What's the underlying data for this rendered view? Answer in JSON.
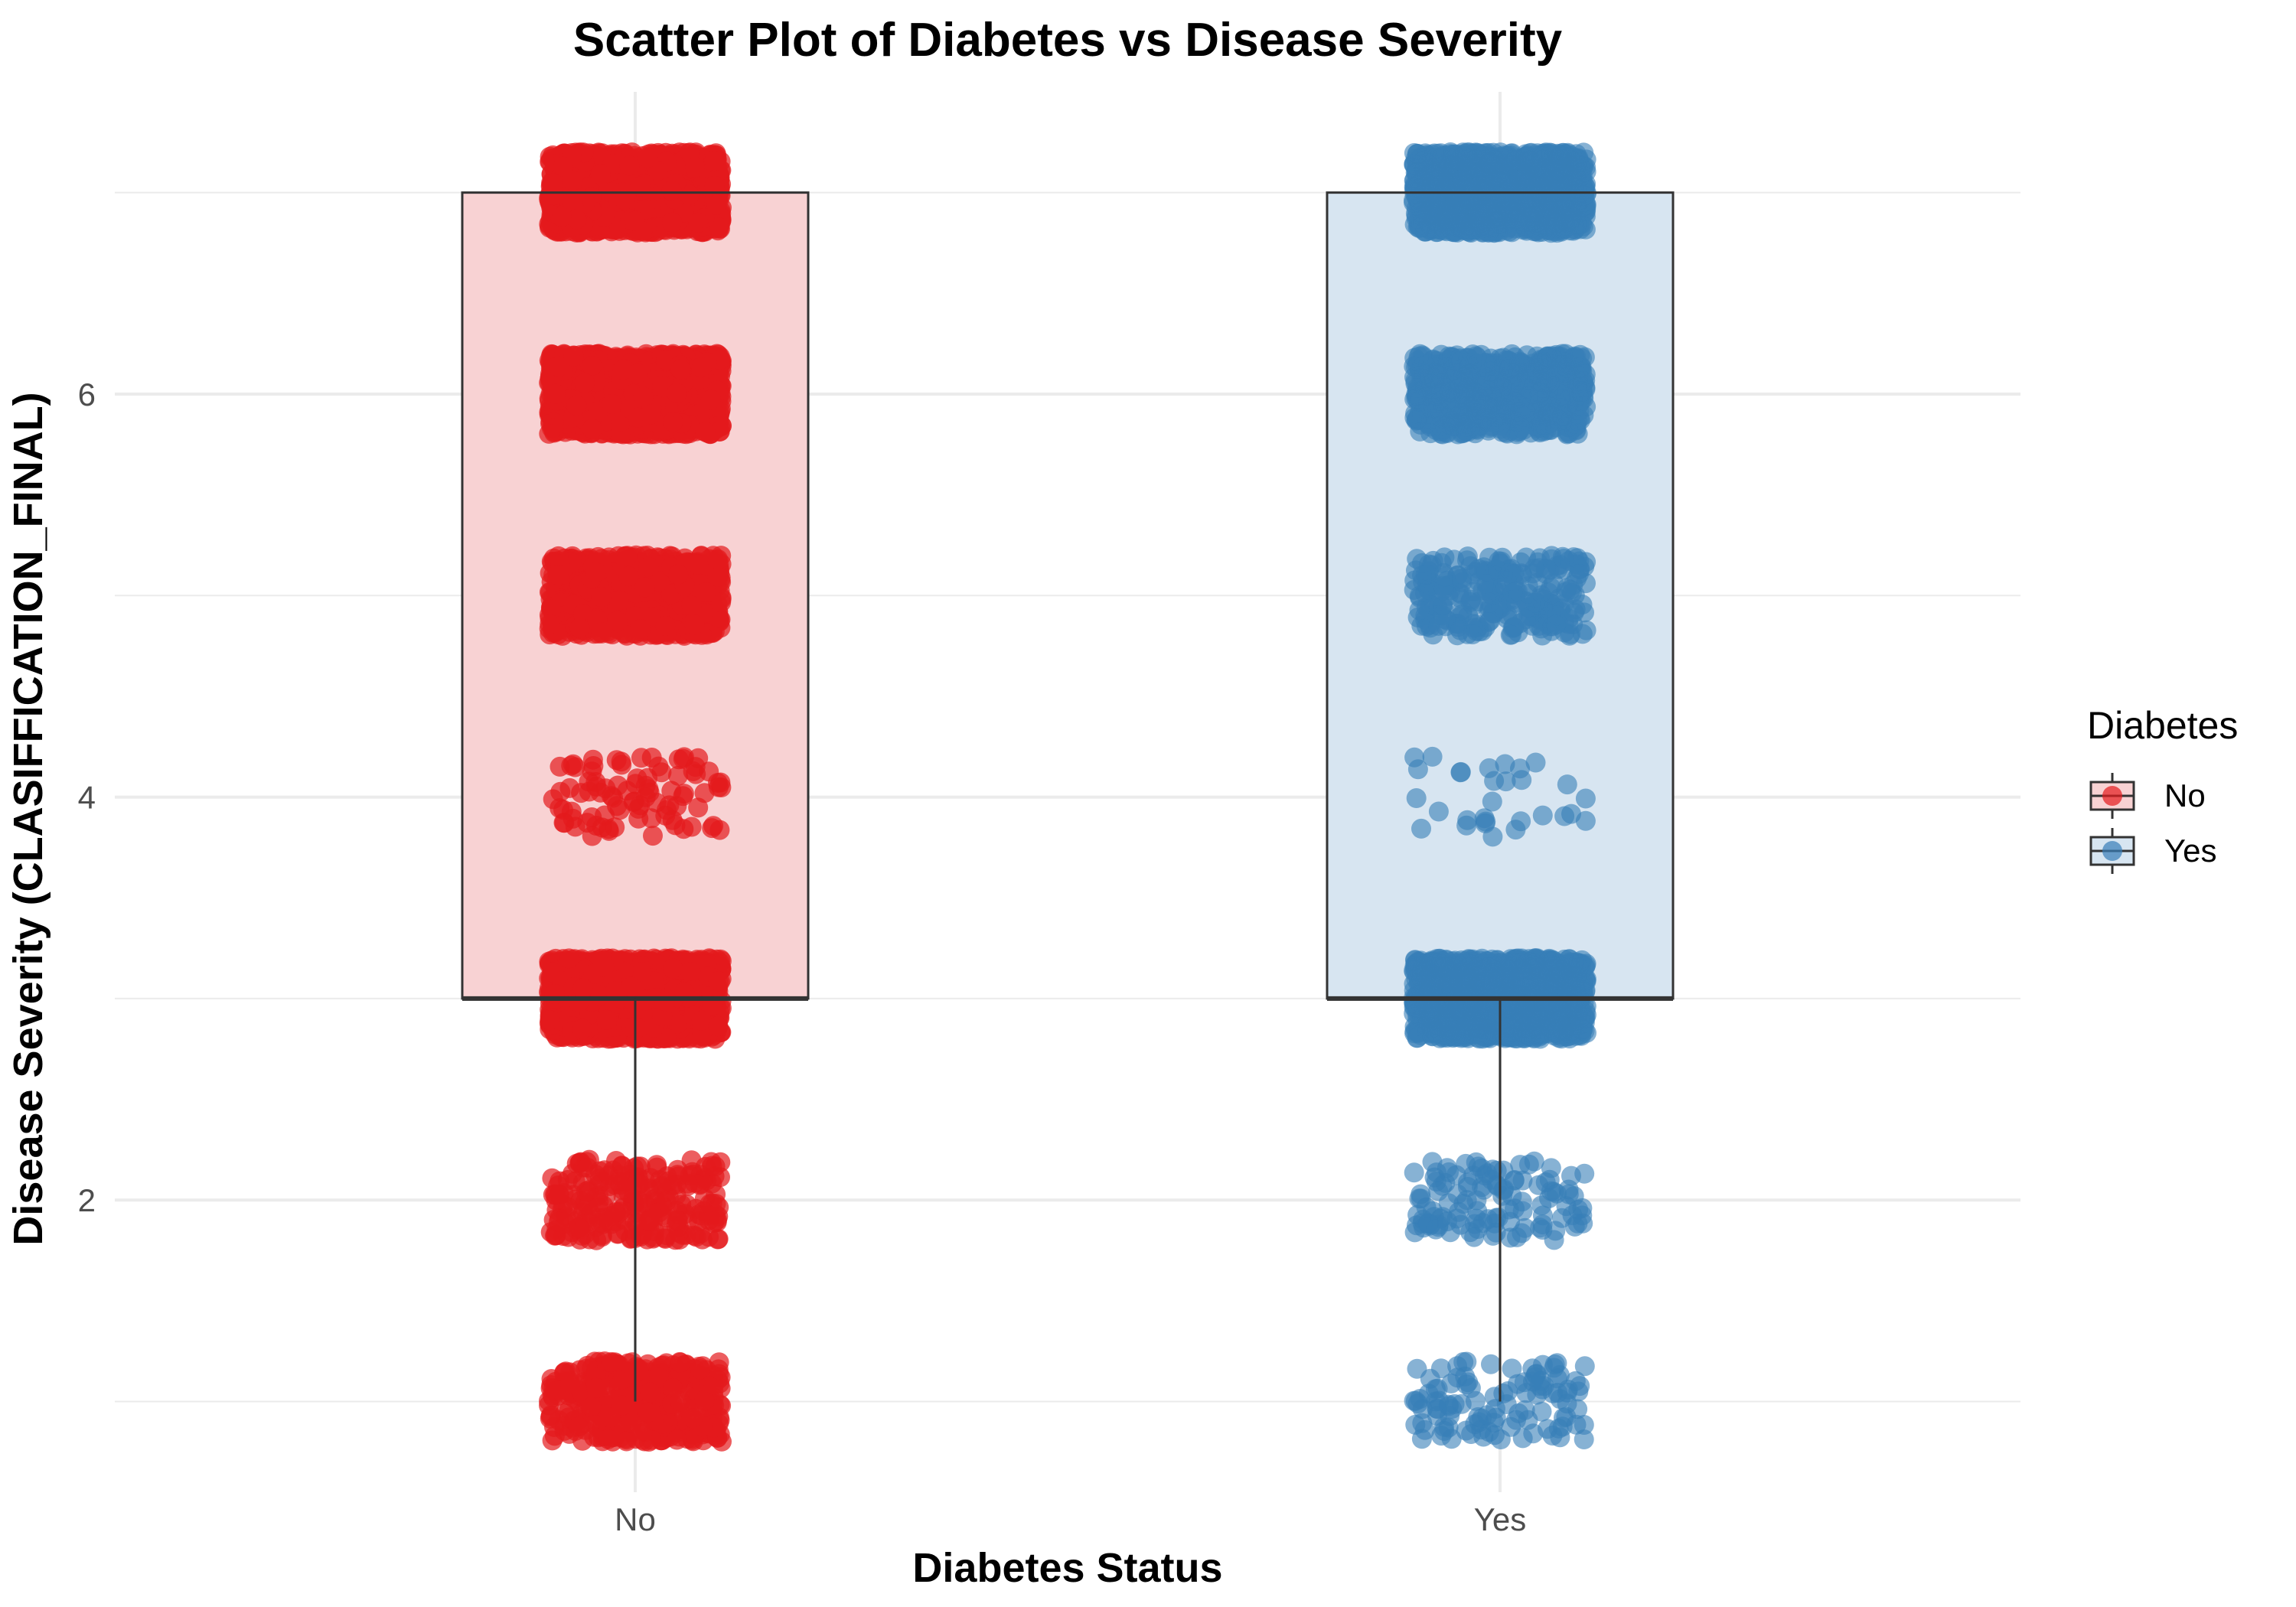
{
  "chart_data": {
    "type": "scatter",
    "subtype": "jitter + boxplot",
    "title": "Scatter Plot of Diabetes vs Disease Severity",
    "xlabel": "Diabetes Status",
    "ylabel": "Disease Severity (CLASIFFICATION_FINAL)",
    "categories": [
      "No",
      "Yes"
    ],
    "ylim": [
      0.55,
      7.5
    ],
    "yticks": [
      2,
      4,
      6
    ],
    "grid": true,
    "legend": {
      "title": "Diabetes",
      "placement": "right",
      "entries": [
        "No",
        "Yes"
      ]
    },
    "colors": {
      "No": "#E41A1C",
      "Yes": "#377EB8",
      "No_fill": "#F8D2D3",
      "Yes_fill": "#D7E5F1",
      "box_line": "#333333"
    },
    "boxplot": [
      {
        "name": "No",
        "min": 1,
        "q1": 3,
        "median": 3,
        "q3": 7,
        "max": 7
      },
      {
        "name": "Yes",
        "min": 1,
        "q1": 3,
        "median": 3,
        "q3": 7,
        "max": 7
      }
    ],
    "series": [
      {
        "name": "No",
        "levels": [
          1,
          2,
          3,
          4,
          5,
          6,
          7
        ],
        "counts": [
          420,
          240,
          1500,
          90,
          900,
          1500,
          1500
        ],
        "note": "jittered points clustered around each integer severity level"
      },
      {
        "name": "Yes",
        "levels": [
          1,
          2,
          3,
          4,
          5,
          6,
          7
        ],
        "counts": [
          110,
          120,
          1500,
          30,
          260,
          700,
          1500
        ],
        "note": "jittered points clustered around each integer severity level"
      }
    ]
  }
}
